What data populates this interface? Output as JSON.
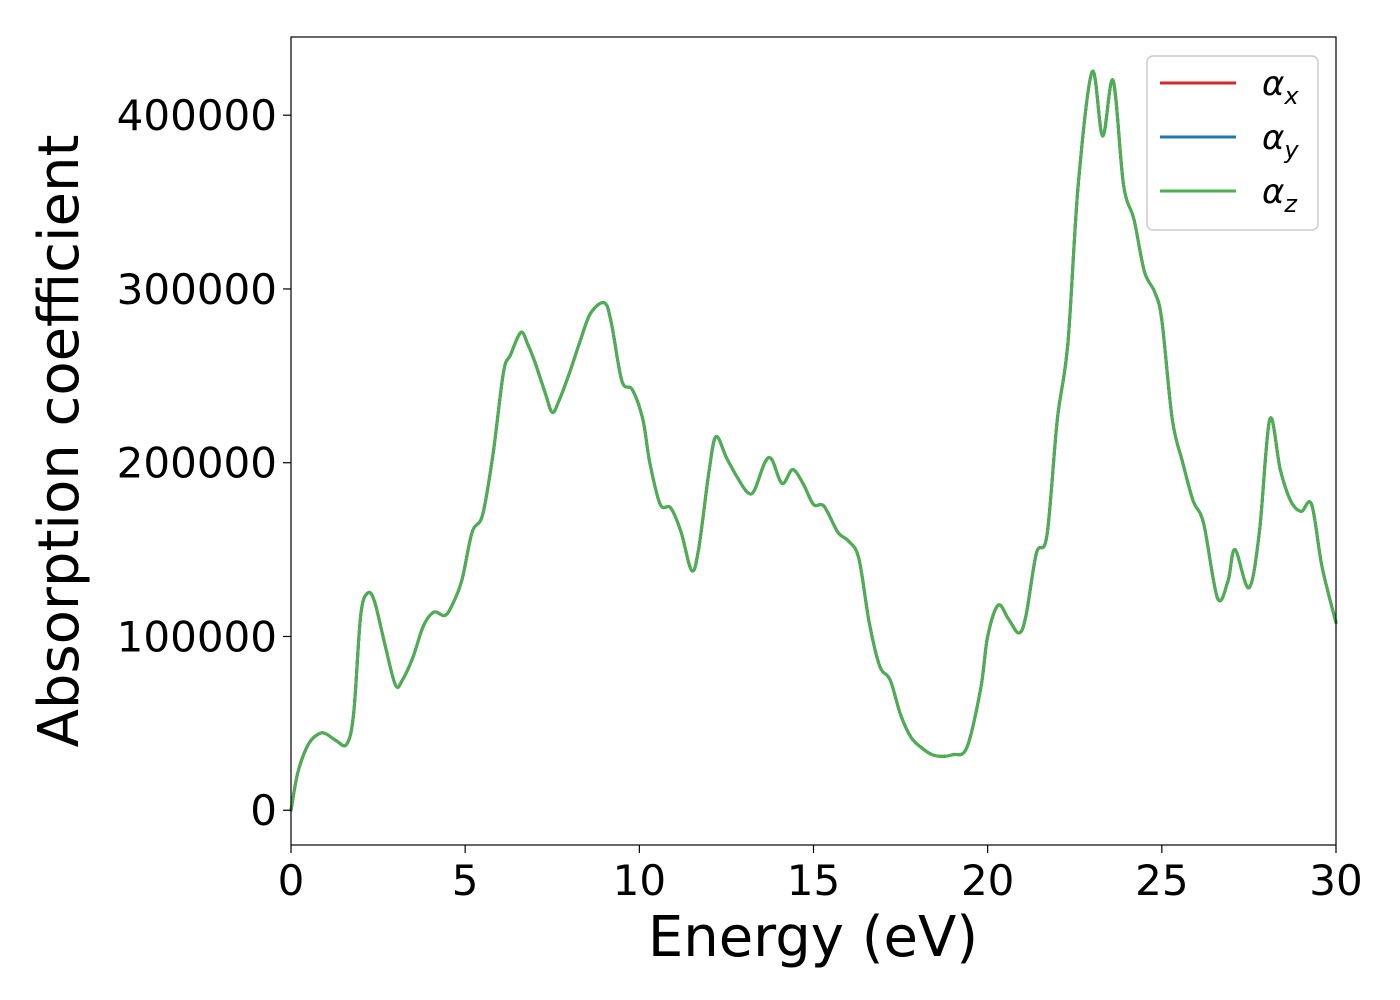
{
  "chart_data": {
    "type": "line",
    "title": "",
    "xlabel": "Energy (eV)",
    "ylabel": "Absorption coefficient",
    "xlim": [
      0,
      30
    ],
    "ylim": [
      -20000,
      445000
    ],
    "xticks": [
      0,
      5,
      10,
      15,
      20,
      25,
      30
    ],
    "xtick_labels": [
      "0",
      "5",
      "10",
      "15",
      "20",
      "25",
      "30"
    ],
    "yticks": [
      0,
      100000,
      200000,
      300000,
      400000
    ],
    "ytick_labels": [
      "0",
      "100000",
      "200000",
      "300000",
      "400000"
    ],
    "grid": false,
    "legend_position": "upper right",
    "series": [
      {
        "name_symbol": "α",
        "name_sub": "x",
        "color": "#d62728",
        "style": "solid"
      },
      {
        "name_symbol": "α",
        "name_sub": "y",
        "color": "#1f77b4",
        "style": "solid"
      },
      {
        "name_symbol": "α",
        "name_sub": "z",
        "color": "#4caf50",
        "style": "solid"
      }
    ],
    "x": [
      0,
      0.2,
      0.5,
      0.8,
      1.0,
      1.3,
      1.6,
      1.8,
      2.0,
      2.2,
      2.4,
      2.7,
      3.0,
      3.2,
      3.5,
      3.8,
      4.1,
      4.4,
      4.6,
      4.9,
      5.2,
      5.5,
      5.8,
      6.1,
      6.3,
      6.6,
      6.8,
      7.0,
      7.3,
      7.5,
      7.7,
      8.0,
      8.3,
      8.6,
      9.0,
      9.2,
      9.5,
      9.8,
      10.1,
      10.3,
      10.6,
      10.9,
      11.2,
      11.5,
      11.7,
      12.0,
      12.2,
      12.5,
      12.8,
      13.1,
      13.3,
      13.6,
      13.8,
      14.1,
      14.4,
      14.7,
      15.0,
      15.3,
      15.7,
      16.0,
      16.3,
      16.6,
      16.9,
      17.2,
      17.5,
      17.8,
      18.1,
      18.4,
      18.7,
      19.0,
      19.4,
      19.8,
      20.0,
      20.3,
      20.6,
      20.9,
      21.1,
      21.4,
      21.7,
      22.0,
      22.3,
      22.6,
      23.0,
      23.3,
      23.6,
      23.9,
      24.2,
      24.5,
      24.8,
      25.0,
      25.3,
      25.6,
      25.9,
      26.2,
      26.6,
      26.9,
      27.1,
      27.5,
      27.8,
      28.1,
      28.4,
      28.7,
      29.0,
      29.3,
      29.6,
      30.0
    ],
    "y": [
      0,
      22000,
      38000,
      44000,
      44000,
      40000,
      38000,
      56000,
      112000,
      125000,
      120000,
      95000,
      72000,
      75000,
      88000,
      106000,
      114000,
      112000,
      117000,
      132000,
      160000,
      170000,
      205000,
      252000,
      262000,
      275000,
      268000,
      258000,
      240000,
      229000,
      236000,
      252000,
      270000,
      286000,
      292000,
      280000,
      247000,
      242000,
      225000,
      200000,
      176000,
      174000,
      160000,
      138000,
      150000,
      195000,
      215000,
      203000,
      192000,
      183000,
      184000,
      200000,
      202000,
      188000,
      196000,
      188000,
      176000,
      175000,
      160000,
      155000,
      145000,
      108000,
      83000,
      75000,
      55000,
      42000,
      36000,
      32000,
      31000,
      32000,
      36000,
      70000,
      100000,
      118000,
      110000,
      102000,
      112000,
      148000,
      158000,
      225000,
      268000,
      360000,
      425000,
      388000,
      420000,
      360000,
      340000,
      310000,
      298000,
      282000,
      225000,
      200000,
      178000,
      165000,
      122000,
      132000,
      150000,
      128000,
      160000,
      225000,
      196000,
      178000,
      172000,
      176000,
      140000,
      108000
    ]
  }
}
